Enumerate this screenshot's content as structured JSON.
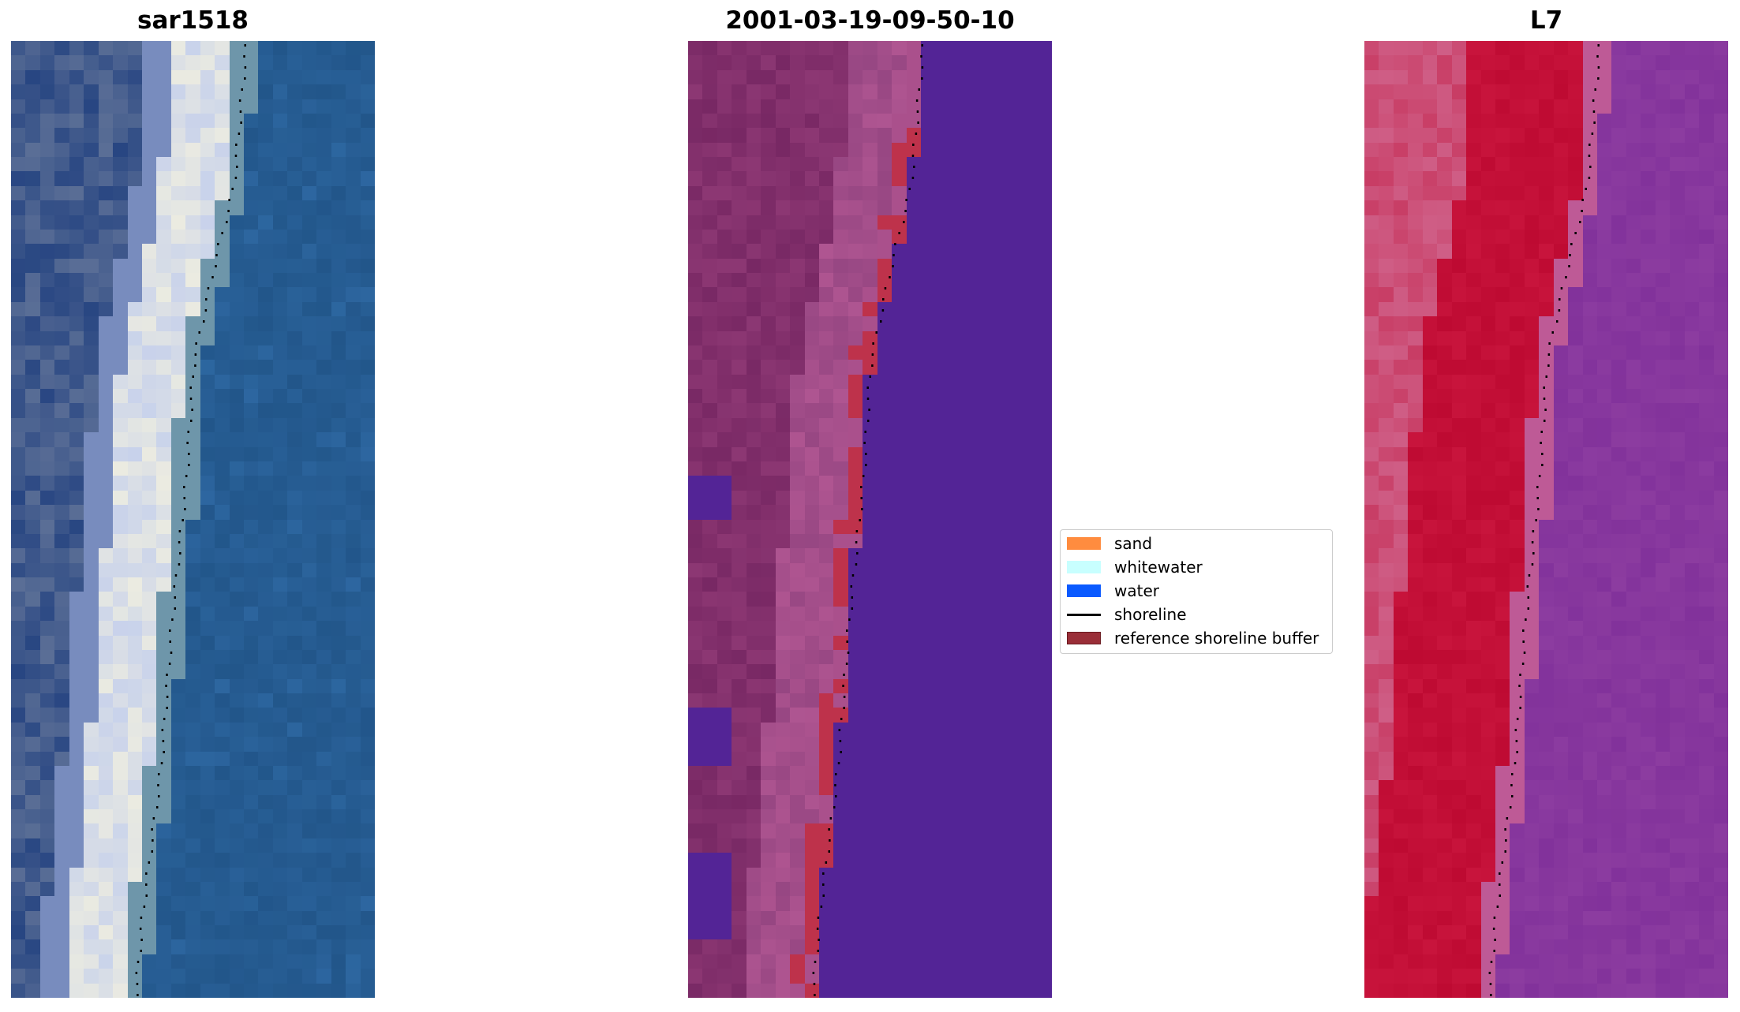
{
  "panels": [
    {
      "title": "sar1518",
      "scheme": "sar"
    },
    {
      "title": "2001-03-19-09-50-10",
      "scheme": "class"
    },
    {
      "title": "L7",
      "scheme": "l7"
    }
  ],
  "legend": {
    "items": [
      {
        "label": "sand",
        "color": "#ff8c3f"
      },
      {
        "label": "whitewater",
        "color": "#c8ffff"
      },
      {
        "label": "water",
        "color": "#0a5aff"
      },
      {
        "label": "shoreline",
        "color": "#000000"
      },
      {
        "label": "reference shoreline buffer",
        "color": "#9a2e38"
      }
    ]
  }
}
